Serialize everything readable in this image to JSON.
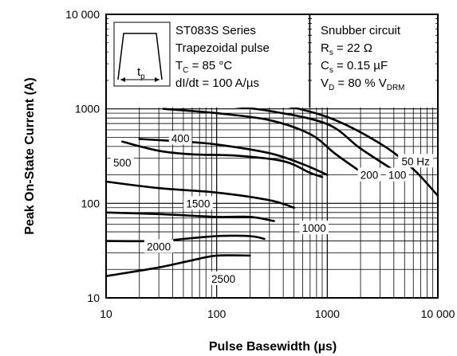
{
  "chart_data": {
    "type": "line",
    "title": "",
    "xlabel": "Pulse Basewidth (µs)",
    "ylabel": "Peak On-State Current (A)",
    "x_scale": "log",
    "y_scale": "log",
    "xlim": [
      10,
      10000
    ],
    "ylim": [
      10,
      10000
    ],
    "x_tick_labels": [
      "10",
      "100",
      "1000",
      "10 000"
    ],
    "y_tick_labels": [
      "10",
      "100",
      "1000",
      "10 000"
    ],
    "grid": true,
    "info_left": {
      "line1": "ST083S Series",
      "line2": "Trapezoidal pulse",
      "line3_main": "T",
      "line3_sub": "C",
      "line3_rest": " = 85 °C",
      "line4": "dI/dt = 100 A/µs",
      "pulse_label_main": "t",
      "pulse_label_sub": "p"
    },
    "info_right": {
      "line1": "Snubber circuit",
      "line2_main": "R",
      "line2_sub": "s",
      "line2_rest": " = 22 Ω",
      "line3_main": "C",
      "line3_sub": "s",
      "line3_rest": " = 0.15 µF",
      "line4_main": "V",
      "line4_sub": "D",
      "line4_rest": " = 80 % V",
      "line4_sub2": "DRM"
    },
    "series": [
      {
        "name": "50 Hz",
        "x": [
          45,
          100,
          300,
          1000,
          3000,
          6000,
          10000
        ],
        "y": [
          1350,
          1280,
          1150,
          820,
          430,
          230,
          120
        ]
      },
      {
        "name": "100",
        "x": [
          45,
          100,
          300,
          1000,
          2000,
          4500
        ],
        "y": [
          1190,
          1100,
          950,
          690,
          380,
          205
        ]
      },
      {
        "name": "200",
        "x": [
          33,
          100,
          300,
          700,
          1200,
          2200
        ],
        "y": [
          1000,
          900,
          760,
          540,
          330,
          200
        ]
      },
      {
        "name": "400",
        "x": [
          20,
          50,
          100,
          300,
          600,
          1000
        ],
        "y": [
          480,
          450,
          420,
          340,
          260,
          200
        ]
      },
      {
        "name": "500",
        "x": [
          14,
          30,
          60,
          150,
          400,
          700,
          900
        ],
        "y": [
          450,
          360,
          330,
          320,
          280,
          210,
          190
        ]
      },
      {
        "name": "1000",
        "x": [
          10,
          30,
          100,
          300,
          500
        ],
        "y": [
          170,
          145,
          130,
          108,
          90
        ]
      },
      {
        "name": "1500",
        "x": [
          10,
          30,
          100,
          200,
          330
        ],
        "y": [
          80,
          77,
          72,
          72,
          65
        ]
      },
      {
        "name": "2000",
        "x": [
          10,
          30,
          50,
          100,
          200,
          270
        ],
        "y": [
          40,
          40,
          42,
          45,
          45,
          42
        ]
      },
      {
        "name": "2500",
        "x": [
          10,
          30,
          60,
          100,
          200
        ],
        "y": [
          17,
          21,
          25,
          28,
          28
        ]
      }
    ],
    "curve_labels": [
      {
        "text": "50 Hz",
        "x": 6300,
        "y": 280
      },
      {
        "text": "100",
        "x": 4300,
        "y": 200
      },
      {
        "text": "200",
        "x": 2400,
        "y": 200
      },
      {
        "text": "400",
        "x": 47,
        "y": 490
      },
      {
        "text": "500",
        "x": 14,
        "y": 270
      },
      {
        "text": "1000",
        "x": 760,
        "y": 55
      },
      {
        "text": "1500",
        "x": 68,
        "y": 100
      },
      {
        "text": "2000",
        "x": 30,
        "y": 35
      },
      {
        "text": "2500",
        "x": 115,
        "y": 16
      }
    ]
  }
}
